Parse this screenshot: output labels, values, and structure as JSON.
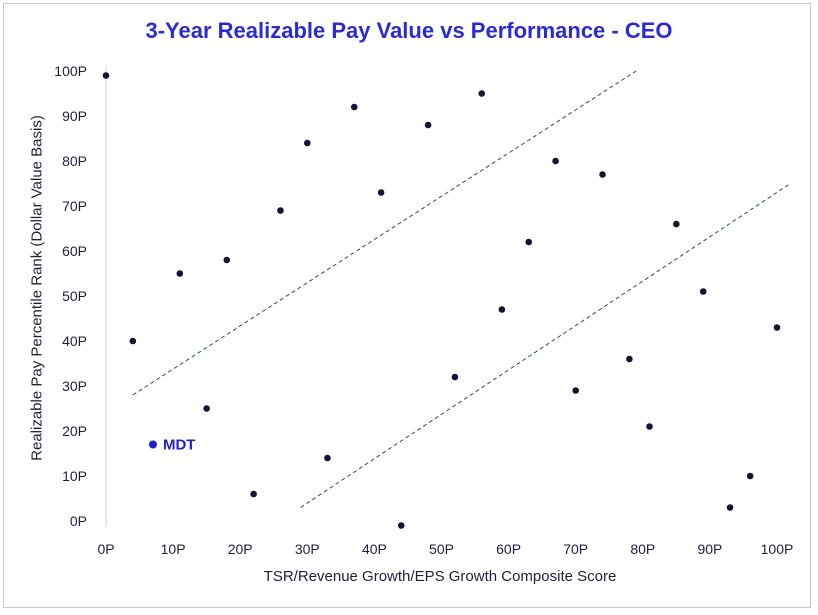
{
  "chart_data": {
    "type": "scatter",
    "title": "3-Year Realizable Pay Value vs Performance - CEO",
    "xlabel": "TSR/Revenue Growth/EPS Growth Composite Score",
    "ylabel": "Realizable Pay Percentile Rank (Dollar Value Basis)",
    "xlim": [
      0,
      100
    ],
    "ylim": [
      0,
      100
    ],
    "x_ticks": [
      "0P",
      "10P",
      "20P",
      "30P",
      "40P",
      "50P",
      "60P",
      "70P",
      "80P",
      "90P",
      "100P"
    ],
    "y_ticks": [
      "0P",
      "10P",
      "20P",
      "30P",
      "40P",
      "50P",
      "60P",
      "70P",
      "80P",
      "90P",
      "100P"
    ],
    "grid": false,
    "point_color": "#141436",
    "highlight_color": "#2020c8",
    "line_color": "#2b4a7a",
    "series": [
      {
        "points": [
          [
            0,
            99
          ],
          [
            4,
            40
          ],
          [
            11,
            55
          ],
          [
            15,
            25
          ],
          [
            18,
            58
          ],
          [
            22,
            6
          ],
          [
            26,
            69
          ],
          [
            30,
            84
          ],
          [
            33,
            14
          ],
          [
            37,
            92
          ],
          [
            41,
            73
          ],
          [
            44,
            -1
          ],
          [
            48,
            88
          ],
          [
            52,
            32
          ],
          [
            56,
            95
          ],
          [
            59,
            47
          ],
          [
            63,
            62
          ],
          [
            67,
            80
          ],
          [
            70,
            29
          ],
          [
            74,
            77
          ],
          [
            78,
            36
          ],
          [
            81,
            21
          ],
          [
            85,
            66
          ],
          [
            89,
            51
          ],
          [
            93,
            3
          ],
          [
            96,
            10
          ],
          [
            100,
            43
          ]
        ]
      }
    ],
    "highlight": {
      "label": "MDT",
      "x": 7,
      "y": 17
    },
    "reference_lines": [
      {
        "x1": 4,
        "y1": 28,
        "x2": 79,
        "y2": 100
      },
      {
        "x1": 29,
        "y1": 3,
        "x2": 102,
        "y2": 75
      }
    ]
  }
}
